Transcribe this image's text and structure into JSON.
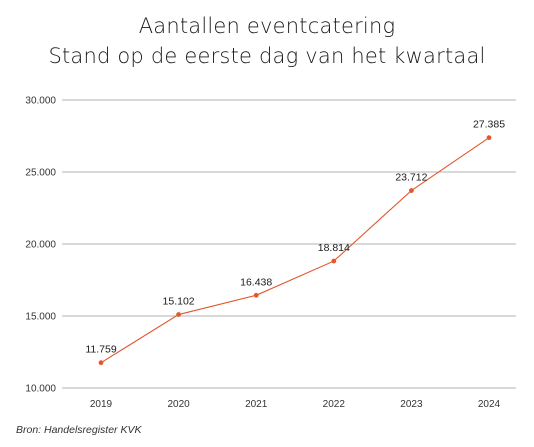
{
  "chart_data": {
    "type": "line",
    "title": "Aantallen eventcatering",
    "subtitle": "Stand op de eerste dag van het kwartaal",
    "categories": [
      "2019",
      "2020",
      "2021",
      "2022",
      "2023",
      "2024"
    ],
    "series": [
      {
        "values": [
          11759,
          15102,
          16438,
          18814,
          23712,
          27385
        ],
        "labels": [
          "11.759",
          "15.102",
          "16.438",
          "18.814",
          "23.712",
          "27.385"
        ]
      }
    ],
    "ylim": [
      10000,
      30000
    ],
    "yticks": [
      10000,
      15000,
      20000,
      25000,
      30000
    ],
    "ytick_labels": [
      "10.000",
      "15.000",
      "20.000",
      "25.000",
      "30.000"
    ],
    "grid": true,
    "colors": {
      "line": "#e4572e",
      "grid": "#9a9a9a",
      "text": "#1a1a1a"
    }
  },
  "source": "Bron: Handelsregister KVK"
}
